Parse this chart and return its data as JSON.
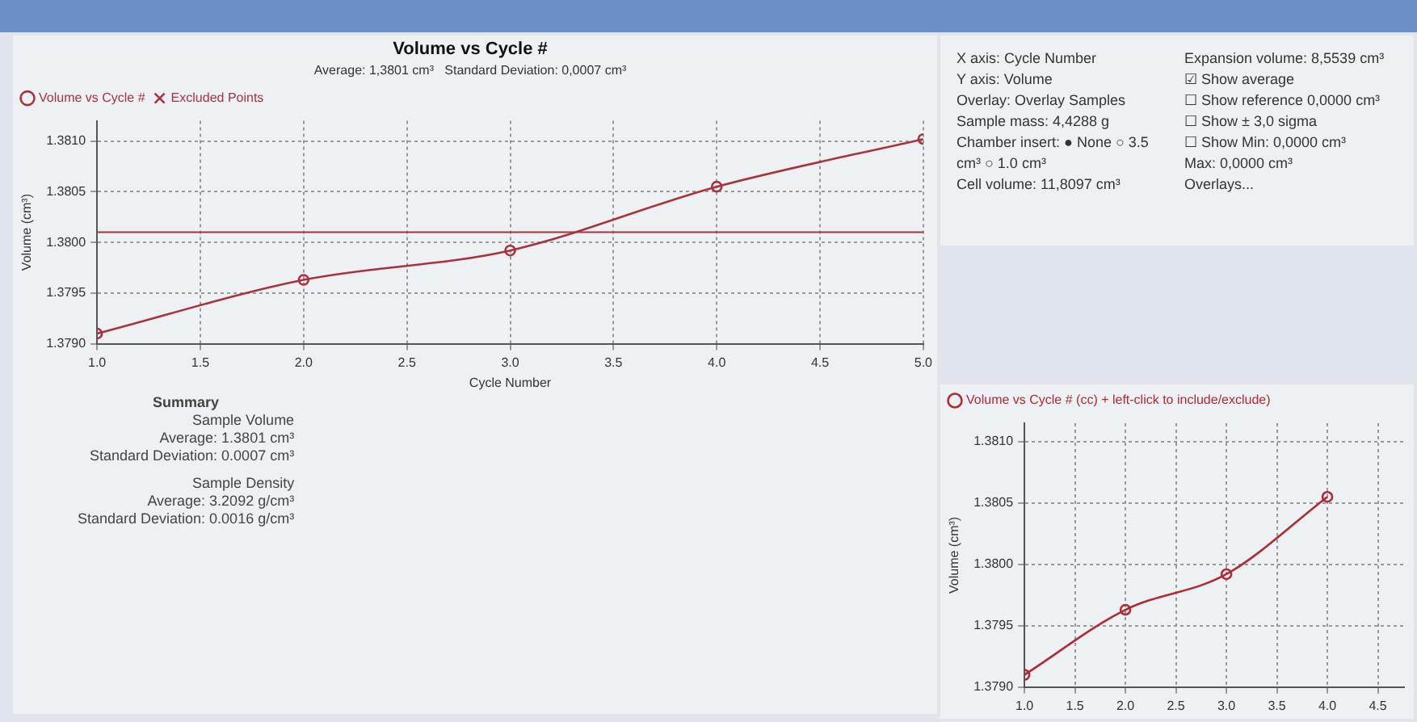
{
  "chart_data": [
    {
      "type": "line",
      "title": "Volume vs Cycle #",
      "subtitle": "Average: 1,3801 cm³   Standard Deviation: 0,0007 cm³",
      "xlabel": "Cycle Number",
      "ylabel": "Volume (cm³)",
      "x": [
        1,
        2,
        3,
        4,
        5
      ],
      "series": [
        {
          "name": "Volume vs Cycle #",
          "color": "#a8323e",
          "values": [
            1.3791,
            1.37963,
            1.37992,
            1.38055,
            1.38102
          ],
          "marker": "circle"
        },
        {
          "name": "Excluded Points",
          "color": "#a8323e",
          "values": [
            null,
            null,
            null,
            null,
            null
          ],
          "marker": "cross"
        }
      ],
      "xlim": [
        1,
        5
      ],
      "xticks": [
        {
          "value": 1,
          "label": "1.0"
        },
        {
          "value": 1.5,
          "label": "1.5"
        },
        {
          "value": 2,
          "label": "2.0"
        },
        {
          "value": 2.5,
          "label": "2.5"
        },
        {
          "value": 3,
          "label": "3.0"
        },
        {
          "value": 3.5,
          "label": "3.5"
        },
        {
          "value": 4,
          "label": "4.0"
        },
        {
          "value": 4.5,
          "label": "4.5"
        },
        {
          "value": 5,
          "label": "5.0"
        }
      ],
      "ylim": [
        1.379,
        1.3812
      ],
      "yticks": [
        {
          "value": 1.379,
          "label": "1.3790"
        },
        {
          "value": 1.3795,
          "label": "1.3795"
        },
        {
          "value": 1.38,
          "label": "1.3800"
        },
        {
          "value": 1.3805,
          "label": "1.3805"
        },
        {
          "value": 1.381,
          "label": "1.3810"
        }
      ],
      "ref_lines": [
        {
          "axis": "y",
          "value": 1.3801,
          "color": "#a8323e"
        }
      ],
      "grid": true,
      "legend": "top left",
      "annotations": [
        "Summary",
        "Sample Volume",
        "Average: 1.3801 cm³",
        "Standard Deviation: 0.0007 cm³",
        "Sample Density",
        "Average: 3.2092 g/cm³",
        "Standard Deviation: 0.0016 g/cm³"
      ]
    },
    {
      "type": "line",
      "ylabel": "Volume (cm³)",
      "x": [
        1,
        2,
        3,
        4
      ],
      "series": [
        {
          "name": "Volume vs Cycle # (cc) + left-click to include/exclude)",
          "color": "#b02a36",
          "values": [
            1.3791,
            1.37963,
            1.37992,
            1.38055
          ],
          "marker": "circle"
        }
      ],
      "xlim": [
        1,
        4.76
      ],
      "xticks": [
        {
          "value": 1,
          "label": "1.0"
        },
        {
          "value": 1.5,
          "label": "1.5"
        },
        {
          "value": 2,
          "label": "2.0"
        },
        {
          "value": 2.5,
          "label": "2.5"
        },
        {
          "value": 3,
          "label": "3.0"
        },
        {
          "value": 3.5,
          "label": "3.5"
        },
        {
          "value": 4,
          "label": "4.0"
        },
        {
          "value": 4.5,
          "label": "4.5"
        }
      ],
      "ylim": [
        1.379,
        1.38115
      ],
      "yticks": [
        {
          "value": 1.379,
          "label": "1.3790"
        },
        {
          "value": 1.3795,
          "label": "1.3795"
        },
        {
          "value": 1.38,
          "label": "1.3800"
        },
        {
          "value": 1.3805,
          "label": "1.3805"
        },
        {
          "value": 1.381,
          "label": "1.3810"
        }
      ],
      "grid": true,
      "legend": "top left"
    },
    {
      "type": "other",
      "annotations": [
        "X axis: Cycle Number",
        "Y axis: Volume",
        "Overlay: Overlay Samples",
        "Sample mass: 4,4288 g",
        "Chamber insert: ● None  ○ 3.5 cm³  ○ 1.0 cm³",
        "Cell volume: 11,8097 cm³",
        "Expansion volume: 8,5539 cm³",
        "☑ Show average",
        "☐ Show reference 0,0000 cm³",
        "☐ Show ± 3,0 sigma",
        "☐ Show  Min: 0,0000 cm³",
        "Max: 0,0000 cm³",
        "Overlays..."
      ]
    }
  ]
}
